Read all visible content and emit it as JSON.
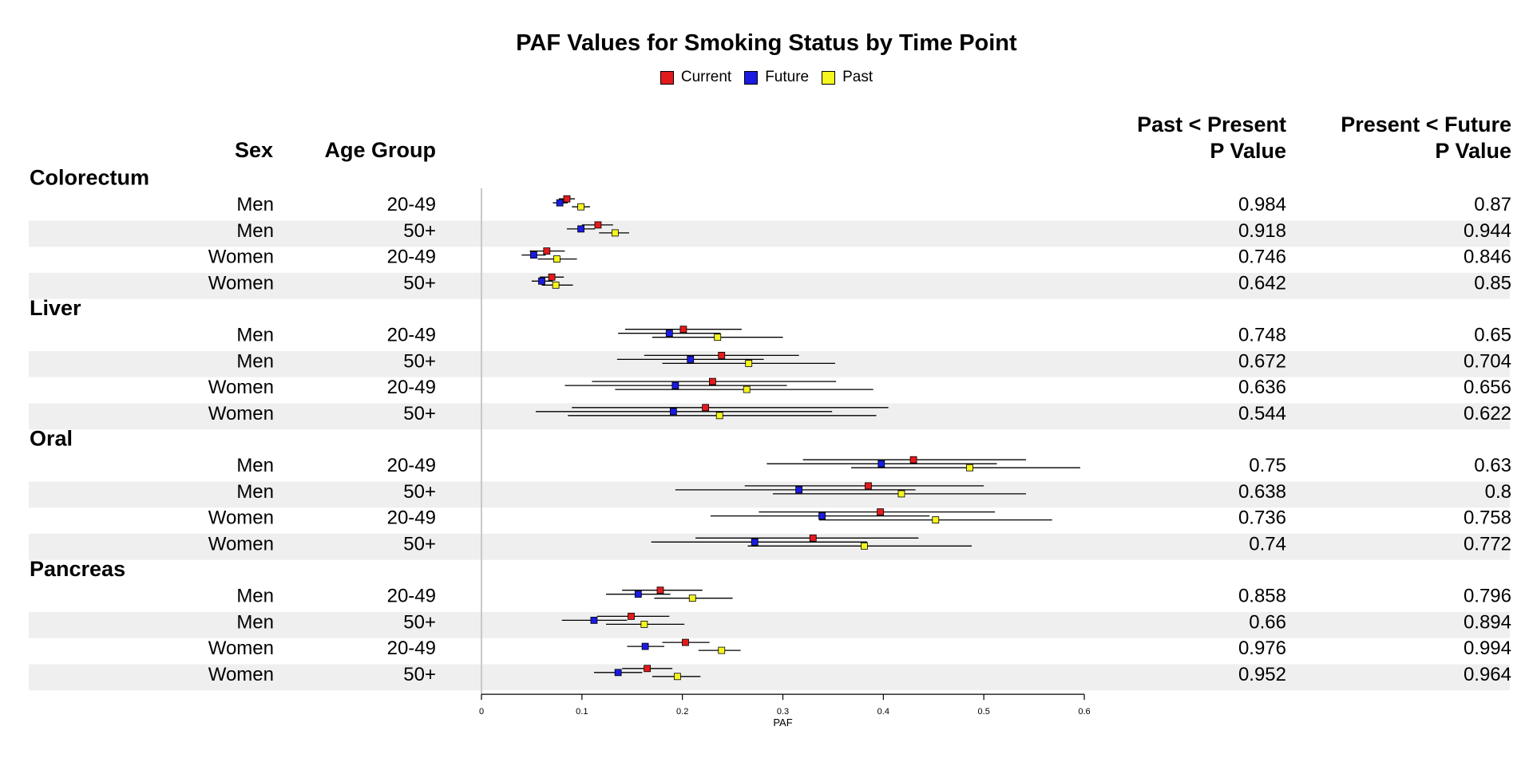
{
  "title": "PAF Values for Smoking Status by Time Point",
  "legend": [
    {
      "label": "Current",
      "color": "#e31a1c"
    },
    {
      "label": "Future",
      "color": "#1a1ae3"
    },
    {
      "label": "Past",
      "color": "#f5f520"
    }
  ],
  "headers": {
    "sex": "Sex",
    "age_group": "Age Group",
    "past_present_line1": "Past < Present",
    "past_present_line2": "P Value",
    "present_future_line1": "Present < Future",
    "present_future_line2": "P Value"
  },
  "chart_data": {
    "type": "forest",
    "xlabel": "PAF",
    "xlim": [
      0,
      0.6
    ],
    "xticks": [
      "0",
      "0.1",
      "0.2",
      "0.3",
      "0.4",
      "0.5",
      "0.6"
    ],
    "series": [
      "Current",
      "Future",
      "Past"
    ],
    "groups": [
      {
        "name": "Colorectum",
        "rows": [
          {
            "sex": "Men",
            "age": "20-49",
            "p1": "0.984",
            "p2": "0.87",
            "current": [
              0.085,
              0.077,
              0.093
            ],
            "future": [
              0.078,
              0.071,
              0.086
            ],
            "past": [
              0.099,
              0.09,
              0.108
            ]
          },
          {
            "sex": "Men",
            "age": "50+",
            "p1": "0.918",
            "p2": "0.944",
            "current": [
              0.116,
              0.1,
              0.131
            ],
            "future": [
              0.099,
              0.085,
              0.113
            ],
            "past": [
              0.133,
              0.117,
              0.147
            ]
          },
          {
            "sex": "Women",
            "age": "20-49",
            "p1": "0.746",
            "p2": "0.846",
            "current": [
              0.065,
              0.048,
              0.083
            ],
            "future": [
              0.052,
              0.04,
              0.064
            ],
            "past": [
              0.075,
              0.056,
              0.095
            ]
          },
          {
            "sex": "Women",
            "age": "50+",
            "p1": "0.642",
            "p2": "0.85",
            "current": [
              0.07,
              0.058,
              0.082
            ],
            "future": [
              0.06,
              0.05,
              0.071
            ],
            "past": [
              0.074,
              0.06,
              0.091
            ]
          }
        ]
      },
      {
        "name": "Liver",
        "rows": [
          {
            "sex": "Men",
            "age": "20-49",
            "p1": "0.748",
            "p2": "0.65",
            "current": [
              0.201,
              0.143,
              0.259
            ],
            "future": [
              0.187,
              0.136,
              0.238
            ],
            "past": [
              0.235,
              0.17,
              0.3
            ]
          },
          {
            "sex": "Men",
            "age": "50+",
            "p1": "0.672",
            "p2": "0.704",
            "current": [
              0.239,
              0.162,
              0.316
            ],
            "future": [
              0.208,
              0.135,
              0.281
            ],
            "past": [
              0.266,
              0.18,
              0.352
            ]
          },
          {
            "sex": "Women",
            "age": "20-49",
            "p1": "0.636",
            "p2": "0.656",
            "current": [
              0.23,
              0.11,
              0.353
            ],
            "future": [
              0.193,
              0.083,
              0.304
            ],
            "past": [
              0.264,
              0.133,
              0.39
            ]
          },
          {
            "sex": "Women",
            "age": "50+",
            "p1": "0.544",
            "p2": "0.622",
            "current": [
              0.223,
              0.09,
              0.405
            ],
            "future": [
              0.191,
              0.054,
              0.349
            ],
            "past": [
              0.237,
              0.086,
              0.393
            ]
          }
        ]
      },
      {
        "name": "Oral",
        "rows": [
          {
            "sex": "Men",
            "age": "20-49",
            "p1": "0.75",
            "p2": "0.63",
            "current": [
              0.43,
              0.32,
              0.542
            ],
            "future": [
              0.398,
              0.284,
              0.513
            ],
            "past": [
              0.486,
              0.368,
              0.596
            ]
          },
          {
            "sex": "Men",
            "age": "50+",
            "p1": "0.638",
            "p2": "0.8",
            "current": [
              0.385,
              0.262,
              0.5
            ],
            "future": [
              0.316,
              0.193,
              0.432
            ],
            "past": [
              0.418,
              0.29,
              0.542
            ]
          },
          {
            "sex": "Women",
            "age": "20-49",
            "p1": "0.736",
            "p2": "0.758",
            "current": [
              0.397,
              0.276,
              0.511
            ],
            "future": [
              0.339,
              0.228,
              0.446
            ],
            "past": [
              0.452,
              0.336,
              0.568
            ]
          },
          {
            "sex": "Women",
            "age": "50+",
            "p1": "0.74",
            "p2": "0.772",
            "current": [
              0.33,
              0.213,
              0.435
            ],
            "future": [
              0.272,
              0.169,
              0.384
            ],
            "past": [
              0.381,
              0.265,
              0.488
            ]
          }
        ]
      },
      {
        "name": "Pancreas",
        "rows": [
          {
            "sex": "Men",
            "age": "20-49",
            "p1": "0.858",
            "p2": "0.796",
            "current": [
              0.178,
              0.14,
              0.22
            ],
            "future": [
              0.156,
              0.124,
              0.188
            ],
            "past": [
              0.21,
              0.172,
              0.25
            ]
          },
          {
            "sex": "Men",
            "age": "50+",
            "p1": "0.66",
            "p2": "0.894",
            "current": [
              0.149,
              0.115,
              0.187
            ],
            "future": [
              0.112,
              0.08,
              0.145
            ],
            "past": [
              0.162,
              0.124,
              0.202
            ]
          },
          {
            "sex": "Women",
            "age": "20-49",
            "p1": "0.976",
            "p2": "0.994",
            "current": [
              0.203,
              0.18,
              0.227
            ],
            "future": [
              0.163,
              0.145,
              0.182
            ],
            "past": [
              0.239,
              0.216,
              0.258
            ]
          },
          {
            "sex": "Women",
            "age": "50+",
            "p1": "0.952",
            "p2": "0.964",
            "current": [
              0.165,
              0.14,
              0.19
            ],
            "future": [
              0.136,
              0.112,
              0.16
            ],
            "past": [
              0.195,
              0.17,
              0.218
            ]
          }
        ]
      }
    ]
  }
}
